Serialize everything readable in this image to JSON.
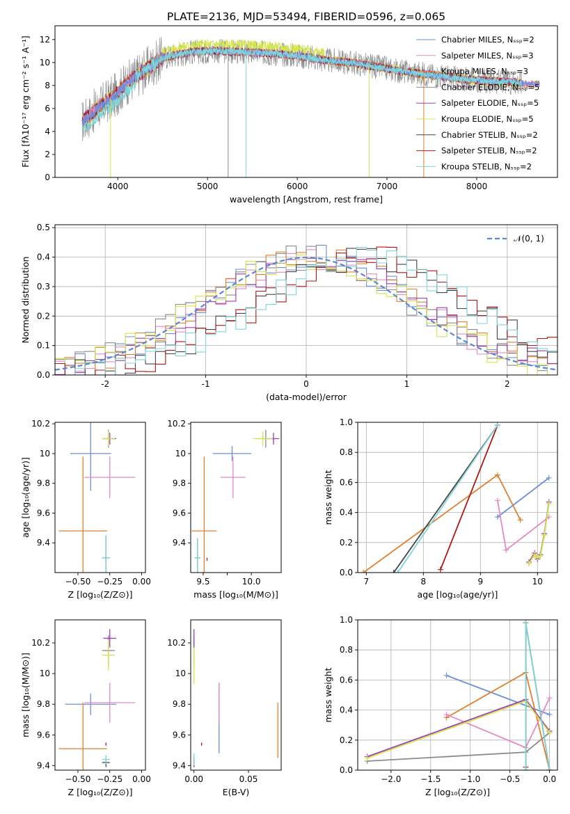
{
  "title": "PLATE=2136, MJD=53494, FIBERID=0596, z=0.065",
  "colors": {
    "chabrier_miles": "#6a8fdc",
    "salpeter_miles": "#e78ac3",
    "kroupa_miles": "#e0802f",
    "chabrier_elodie": "#8b8b8b",
    "salpeter_elodie": "#9b3fb3",
    "kroupa_elodie": "#d4e64a",
    "chabrier_stelib": "#444444",
    "salpeter_stelib": "#b01515",
    "kroupa_stelib": "#7fd6d8",
    "normal": "#5b86d6"
  },
  "chart_data": [
    {
      "id": "spectrum",
      "type": "line",
      "xlabel": "wavelength [Angstrom, rest frame]",
      "ylabel": "Flux [fλ10⁻¹⁷ erg cm⁻² s⁻¹ A⁻¹]",
      "xlim": [
        3300,
        8900
      ],
      "ylim": [
        0,
        13.2
      ],
      "xticks": [
        4000,
        5000,
        6000,
        7000,
        8000
      ],
      "yticks": [
        0,
        2,
        4,
        6,
        8,
        10,
        12
      ],
      "grid": false,
      "legend_position": "top-right",
      "legend": [
        "Chabrier MILES, Nₛₛₚ=2",
        "Salpeter MILES, Nₛₛₚ=3",
        "Kroupa MILES, Nₛₛₚ=3",
        "Chabrier ELODIE, Nₛₛₚ=5",
        "Salpeter ELODIE, Nₛₛₚ=5",
        "Kroupa ELODIE, Nₛₛₚ=5",
        "Chabrier STELIB, Nₛₛₚ=2",
        "Salpeter STELIB, Nₛₛₚ=2",
        "Kroupa STELIB, Nₛₛₚ=2"
      ],
      "legend_colors": [
        "chabrier_miles",
        "salpeter_miles",
        "kroupa_miles",
        "chabrier_elodie",
        "salpeter_elodie",
        "kroupa_elodie",
        "chabrier_stelib",
        "salpeter_stelib",
        "kroupa_stelib"
      ],
      "continuum": {
        "x": [
          3600,
          3800,
          3950,
          4100,
          4300,
          4500,
          4800,
          5100,
          5400,
          5700,
          6000,
          6300,
          6600,
          6900,
          7200,
          7500,
          7800,
          8100,
          8400,
          8600
        ],
        "y": [
          4.8,
          6.2,
          7.0,
          8.2,
          9.3,
          10.4,
          10.9,
          11.0,
          10.9,
          10.8,
          10.6,
          10.2,
          10.0,
          9.6,
          9.2,
          8.9,
          8.6,
          8.4,
          8.3,
          8.1
        ]
      },
      "data_range_x": [
        3600,
        8700
      ]
    },
    {
      "id": "residuals",
      "type": "histogram",
      "xlabel": "(data-model)/error",
      "ylabel": "Normed distribution",
      "xlim": [
        -2.5,
        2.5
      ],
      "ylim": [
        0,
        0.51
      ],
      "xticks": [
        -2,
        -1,
        0,
        1,
        2
      ],
      "yticks": [
        0,
        0.1,
        0.2,
        0.3,
        0.4,
        0.5
      ],
      "grid": true,
      "legend_position": "top-right",
      "legend_label": "𝒩(0, 1)",
      "gaussian": {
        "mean": 0,
        "sigma": 1
      },
      "series_centers": [
        {
          "color": "chabrier_miles",
          "center": 0.05
        },
        {
          "color": "salpeter_miles",
          "center": 0.05
        },
        {
          "color": "kroupa_miles",
          "center": 0.1
        },
        {
          "color": "chabrier_elodie",
          "center": 0.0
        },
        {
          "color": "salpeter_elodie",
          "center": 0.15
        },
        {
          "color": "kroupa_elodie",
          "center": 0.0
        },
        {
          "color": "chabrier_stelib",
          "center": 0.55
        },
        {
          "color": "salpeter_stelib",
          "center": 0.6
        },
        {
          "color": "kroupa_stelib",
          "center": 0.6
        }
      ]
    },
    {
      "id": "z_age",
      "type": "errorbar",
      "xlabel": "Z [log₁₀(Z/Z⊙)]",
      "ylabel": "age  [log₁₀(age/yr)]",
      "xlim": [
        -0.68,
        0.03
      ],
      "ylim": [
        9.2,
        10.21
      ],
      "xticks": [
        -0.5,
        -0.25,
        0.0
      ],
      "xticklabels": [
        "−0.50",
        "−0.25",
        "0.00"
      ],
      "yticks": [
        9.4,
        9.6,
        9.8,
        10.0,
        10.2
      ],
      "grid": false,
      "points": [
        {
          "color": "chabrier_miles",
          "x": -0.4,
          "xerr": 0.16,
          "y": 10.0,
          "yerr": 0.25
        },
        {
          "color": "salpeter_miles",
          "x": -0.25,
          "xerr": 0.2,
          "y": 9.84,
          "yerr": 0.14
        },
        {
          "color": "kroupa_miles",
          "x": -0.46,
          "xerr": 0.19,
          "y": 9.48,
          "yerr": 0.5
        },
        {
          "color": "chabrier_elodie",
          "x": -0.26,
          "xerr": 0.05,
          "y": 10.1,
          "yerr": 0.06
        },
        {
          "color": "salpeter_elodie",
          "x": -0.25,
          "xerr": 0.05,
          "y": 10.1,
          "yerr": 0.04
        },
        {
          "color": "kroupa_elodie",
          "x": -0.26,
          "xerr": 0.05,
          "y": 10.1,
          "yerr": 0.05
        },
        {
          "color": "chabrier_stelib",
          "x": -0.28,
          "xerr": 0.03,
          "y": 9.3,
          "yerr": 0.15
        },
        {
          "color": "salpeter_stelib",
          "x": -0.28,
          "xerr": 0.0,
          "y": 9.3,
          "yerr": 0.01
        },
        {
          "color": "kroupa_stelib",
          "x": -0.28,
          "xerr": 0.03,
          "y": 9.3,
          "yerr": 0.15
        }
      ]
    },
    {
      "id": "mass_age",
      "type": "errorbar",
      "xlabel": "mass [log₁₀(M/M⊙)]",
      "ylabel": "",
      "xlim": [
        9.37,
        10.31
      ],
      "ylim": [
        9.2,
        10.21
      ],
      "xticks": [
        9.5,
        9.75,
        10.0
      ],
      "xticklabels": [
        "9.5",
        "9.75",
        "10.0"
      ],
      "xticks_shown": [
        9.5,
        10.0
      ],
      "yticks": [
        9.4,
        9.6,
        9.8,
        10.0,
        10.2
      ],
      "grid": false,
      "points": [
        {
          "color": "chabrier_miles",
          "x": 9.8,
          "xerr": 0.2,
          "y": 10.0,
          "yerr": 0.05
        },
        {
          "color": "salpeter_miles",
          "x": 9.81,
          "xerr": 0.13,
          "y": 9.84,
          "yerr": 0.14
        },
        {
          "color": "kroupa_miles",
          "x": 9.51,
          "xerr": 0.13,
          "y": 9.48,
          "yerr": 0.5
        },
        {
          "color": "chabrier_elodie",
          "x": 10.15,
          "xerr": 0.1,
          "y": 10.1,
          "yerr": 0.06
        },
        {
          "color": "salpeter_elodie",
          "x": 10.23,
          "xerr": 0.06,
          "y": 10.1,
          "yerr": 0.04
        },
        {
          "color": "kroupa_elodie",
          "x": 10.12,
          "xerr": 0.1,
          "y": 10.1,
          "yerr": 0.05
        },
        {
          "color": "chabrier_stelib",
          "x": 9.44,
          "xerr": 0.03,
          "y": 9.3,
          "yerr": 0.13
        },
        {
          "color": "salpeter_stelib",
          "x": 9.54,
          "xerr": 0.0,
          "y": 9.29,
          "yerr": 0.01
        },
        {
          "color": "kroupa_stelib",
          "x": 9.44,
          "xerr": 0.03,
          "y": 9.3,
          "yerr": 0.13
        }
      ]
    },
    {
      "id": "age_weight",
      "type": "line",
      "xlabel": "age  [log₁₀(age/yr)]",
      "ylabel": "mass weight",
      "xlim": [
        6.85,
        10.35
      ],
      "ylim": [
        0,
        1
      ],
      "xticks": [
        7,
        8,
        9,
        10
      ],
      "yticks": [
        0,
        0.2,
        0.4,
        0.6,
        0.8,
        1.0
      ],
      "grid": true,
      "series": [
        {
          "color": "chabrier_miles",
          "x": [
            9.3,
            10.2
          ],
          "y": [
            0.37,
            0.63
          ]
        },
        {
          "color": "kroupa_miles",
          "x": [
            6.95,
            9.3,
            9.7
          ],
          "y": [
            0.0,
            0.65,
            0.35
          ]
        },
        {
          "color": "salpeter_miles",
          "x": [
            9.3,
            9.45,
            10.2
          ],
          "y": [
            0.48,
            0.15,
            0.37
          ]
        },
        {
          "color": "chabrier_elodie",
          "x": [
            9.85,
            9.95,
            10.0,
            10.05,
            10.12,
            10.2
          ],
          "y": [
            0.06,
            0.12,
            0.1,
            0.11,
            0.25,
            0.46
          ]
        },
        {
          "color": "salpeter_elodie",
          "x": [
            9.85,
            9.95,
            10.0,
            10.05,
            10.12,
            10.2
          ],
          "y": [
            0.07,
            0.13,
            0.09,
            0.12,
            0.26,
            0.47
          ]
        },
        {
          "color": "kroupa_elodie",
          "x": [
            9.85,
            9.95,
            10.0,
            10.05,
            10.12,
            10.2
          ],
          "y": [
            0.06,
            0.12,
            0.1,
            0.11,
            0.25,
            0.46
          ]
        },
        {
          "color": "chabrier_stelib",
          "x": [
            7.48,
            9.3
          ],
          "y": [
            0.0,
            0.98
          ]
        },
        {
          "color": "salpeter_stelib",
          "x": [
            8.3,
            9.3
          ],
          "y": [
            0.02,
            0.98
          ]
        },
        {
          "color": "kroupa_stelib",
          "x": [
            7.55,
            9.3
          ],
          "y": [
            0.0,
            0.98
          ]
        }
      ]
    },
    {
      "id": "z_mass",
      "type": "errorbar",
      "xlabel": "Z [log₁₀(Z/Z⊙)]",
      "ylabel": "mass [log₁₀(M/M⊙)]",
      "xlim": [
        -0.68,
        0.03
      ],
      "ylim": [
        9.37,
        10.35
      ],
      "xticks": [
        -0.5,
        -0.25,
        0.0
      ],
      "xticklabels": [
        "−0.50",
        "−0.25",
        "0.00"
      ],
      "yticks": [
        9.4,
        9.6,
        9.8,
        10.0,
        10.2
      ],
      "grid": false,
      "points": [
        {
          "color": "chabrier_miles",
          "x": -0.4,
          "xerr": 0.2,
          "y": 9.8,
          "yerr": 0.07
        },
        {
          "color": "salpeter_miles",
          "x": -0.25,
          "xerr": 0.2,
          "y": 9.81,
          "yerr": 0.13
        },
        {
          "color": "kroupa_miles",
          "x": -0.46,
          "xerr": 0.19,
          "y": 9.51,
          "yerr": 0.3
        },
        {
          "color": "chabrier_elodie",
          "x": -0.26,
          "xerr": 0.05,
          "y": 10.15,
          "yerr": 0.1
        },
        {
          "color": "salpeter_elodie",
          "x": -0.25,
          "xerr": 0.05,
          "y": 10.23,
          "yerr": 0.06
        },
        {
          "color": "kroupa_elodie",
          "x": -0.26,
          "xerr": 0.05,
          "y": 10.12,
          "yerr": 0.1
        },
        {
          "color": "chabrier_stelib",
          "x": -0.28,
          "xerr": 0.03,
          "y": 9.42,
          "yerr": 0.03
        },
        {
          "color": "salpeter_stelib",
          "x": -0.28,
          "xerr": 0.0,
          "y": 9.54,
          "yerr": 0.01
        },
        {
          "color": "kroupa_stelib",
          "x": -0.28,
          "xerr": 0.03,
          "y": 9.44,
          "yerr": 0.03
        }
      ]
    },
    {
      "id": "ebv_mass",
      "type": "errorbar",
      "xlabel": "E(B-V)",
      "ylabel": "",
      "xlim": [
        -0.003,
        0.08
      ],
      "ylim": [
        9.37,
        10.35
      ],
      "xticks": [
        0.0,
        0.05
      ],
      "xticklabels": [
        "0.00",
        "0.05"
      ],
      "yticks": [
        9.4,
        9.6,
        9.8,
        10.0,
        10.2
      ],
      "grid": false,
      "points": [
        {
          "color": "chabrier_miles",
          "x": 0.023,
          "xerr": 0.0,
          "y": 9.71,
          "yerr": 0.23
        },
        {
          "color": "salpeter_miles",
          "x": 0.023,
          "xerr": 0.0,
          "y": 9.81,
          "yerr": 0.13
        },
        {
          "color": "kroupa_miles",
          "x": 0.077,
          "xerr": 0.0,
          "y": 9.63,
          "yerr": 0.18
        },
        {
          "color": "chabrier_elodie",
          "x": 0.0,
          "xerr": 0.0,
          "y": 10.15,
          "yerr": 0.1
        },
        {
          "color": "salpeter_elodie",
          "x": 0.0,
          "xerr": 0.0,
          "y": 10.23,
          "yerr": 0.06
        },
        {
          "color": "kroupa_elodie",
          "x": 0.0,
          "xerr": 0.0,
          "y": 10.05,
          "yerr": 0.12
        },
        {
          "color": "chabrier_stelib",
          "x": 0.0,
          "xerr": 0.0,
          "y": 9.42,
          "yerr": 0.03
        },
        {
          "color": "salpeter_stelib",
          "x": 0.007,
          "xerr": 0.0,
          "y": 9.54,
          "yerr": 0.01
        },
        {
          "color": "kroupa_stelib",
          "x": 0.0,
          "xerr": 0.0,
          "y": 9.44,
          "yerr": 0.04
        }
      ]
    },
    {
      "id": "z_weight",
      "type": "line",
      "xlabel": "Z [log₁₀(Z/Z⊙)]",
      "ylabel": "mass weight",
      "xlim": [
        -2.42,
        0.1
      ],
      "ylim": [
        0,
        1
      ],
      "xticks": [
        -2.0,
        -1.5,
        -1.0,
        -0.5,
        0.0
      ],
      "xticklabels": [
        "−2.0",
        "−1.5",
        "−1.0",
        "−0.5",
        "0.0"
      ],
      "yticks": [
        0,
        0.2,
        0.4,
        0.6,
        0.8,
        1.0
      ],
      "grid": true,
      "series": [
        {
          "color": "chabrier_miles",
          "x": [
            -1.3,
            0.0
          ],
          "y": [
            0.63,
            0.37
          ]
        },
        {
          "color": "kroupa_miles",
          "x": [
            -1.3,
            -0.3,
            0.0
          ],
          "y": [
            0.35,
            0.65,
            0.0
          ]
        },
        {
          "color": "salpeter_miles",
          "x": [
            -1.3,
            -0.3,
            0.0
          ],
          "y": [
            0.37,
            0.15,
            0.48
          ]
        },
        {
          "color": "chabrier_elodie",
          "x": [
            -2.3,
            -0.3,
            0.0
          ],
          "y": [
            0.06,
            0.12,
            0.25
          ]
        },
        {
          "color": "salpeter_elodie",
          "x": [
            -2.3,
            -0.3,
            0.0
          ],
          "y": [
            0.09,
            0.47,
            0.26
          ]
        },
        {
          "color": "kroupa_elodie",
          "x": [
            -2.3,
            -0.3,
            0.0
          ],
          "y": [
            0.08,
            0.46,
            0.25
          ]
        },
        {
          "color": "chabrier_stelib",
          "x": [
            -0.3,
            -0.3,
            0.0
          ],
          "y": [
            0.0,
            0.98,
            0.0
          ]
        },
        {
          "color": "salpeter_stelib",
          "x": [
            -0.3,
            -0.3
          ],
          "y": [
            0.02,
            0.98
          ]
        },
        {
          "color": "kroupa_stelib",
          "x": [
            -0.3,
            -0.3,
            0.0
          ],
          "y": [
            0.0,
            0.98,
            0.0
          ]
        }
      ]
    }
  ]
}
